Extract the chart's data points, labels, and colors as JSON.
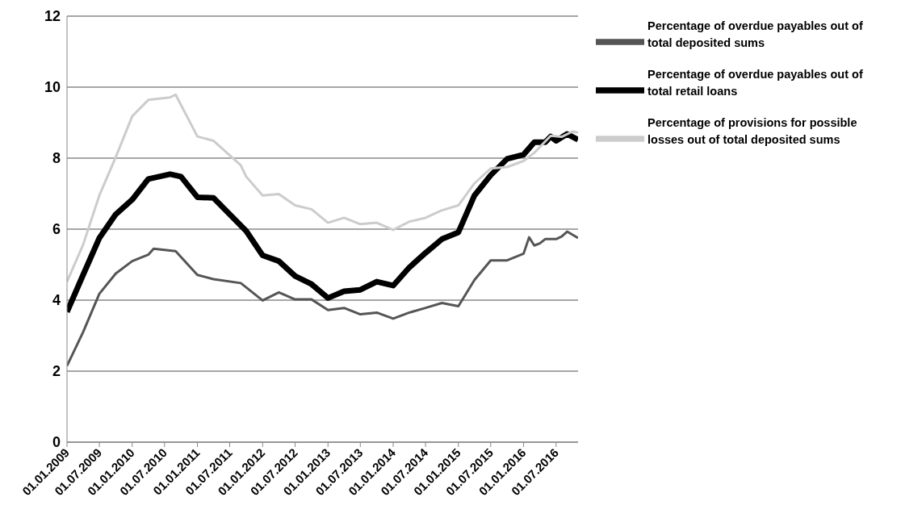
{
  "chart_data": {
    "type": "line",
    "ylim": [
      0,
      12
    ],
    "yticks": [
      0,
      2,
      4,
      6,
      8,
      10,
      12
    ],
    "xlim": [
      "2009-01-01",
      "2016-11-01"
    ],
    "xticks": [
      {
        "value": "2009-01-01",
        "label": "01.01.2009"
      },
      {
        "value": "2009-07-01",
        "label": "01.07.2009"
      },
      {
        "value": "2010-01-01",
        "label": "01.01.2010"
      },
      {
        "value": "2010-07-01",
        "label": "01.07.2010"
      },
      {
        "value": "2011-01-01",
        "label": "01.01.2011"
      },
      {
        "value": "2011-07-01",
        "label": "01.07.2011"
      },
      {
        "value": "2012-01-01",
        "label": "01.01.2012"
      },
      {
        "value": "2012-07-01",
        "label": "01.07.2012"
      },
      {
        "value": "2013-01-01",
        "label": "01.01.2013"
      },
      {
        "value": "2013-07-01",
        "label": "01.07.2013"
      },
      {
        "value": "2014-01-01",
        "label": "01.01.2014"
      },
      {
        "value": "2014-07-01",
        "label": "01.07.2014"
      },
      {
        "value": "2015-01-01",
        "label": "01.01.2015"
      },
      {
        "value": "2015-07-01",
        "label": "01.07.2015"
      },
      {
        "value": "2016-01-01",
        "label": "01.01.2016"
      },
      {
        "value": "2016-07-01",
        "label": "01.07.2016"
      }
    ],
    "grid": "y",
    "legend": "top right",
    "line_style": "solid",
    "marker": "none",
    "series": [
      {
        "name": "Percentage of overdue payables out of total deposited sums",
        "color": "#555555",
        "x": [
          "2009-01-01",
          "2009-04-01",
          "2009-07-01",
          "2009-10-01",
          "2010-01-01",
          "2010-04-01",
          "2010-05-01",
          "2010-09-01",
          "2011-01-01",
          "2011-04-01",
          "2011-09-01",
          "2012-01-01",
          "2012-04-01",
          "2012-07-01",
          "2012-10-01",
          "2013-01-01",
          "2013-04-01",
          "2013-07-01",
          "2013-10-01",
          "2014-01-01",
          "2014-04-01",
          "2014-07-01",
          "2014-10-01",
          "2015-01-01",
          "2015-04-01",
          "2015-07-01",
          "2015-10-01",
          "2016-01-01",
          "2016-02-01",
          "2016-03-01",
          "2016-04-01",
          "2016-05-01",
          "2016-07-01",
          "2016-08-01",
          "2016-09-01",
          "2016-11-01"
        ],
        "values": [
          2.15,
          3.1,
          4.18,
          4.75,
          5.1,
          5.28,
          5.45,
          5.38,
          4.71,
          4.59,
          4.48,
          3.99,
          4.22,
          4.02,
          4.02,
          3.72,
          3.78,
          3.6,
          3.65,
          3.48,
          3.65,
          3.78,
          3.92,
          3.83,
          4.57,
          5.12,
          5.12,
          5.31,
          5.77,
          5.54,
          5.6,
          5.72,
          5.72,
          5.79,
          5.93,
          5.75
        ]
      },
      {
        "name": "Percentage of overdue payables out of total retail loans",
        "color": "#000000",
        "x": [
          "2009-01-01",
          "2009-04-01",
          "2009-07-01",
          "2009-10-01",
          "2010-01-01",
          "2010-04-01",
          "2010-08-01",
          "2010-10-01",
          "2011-01-01",
          "2011-04-01",
          "2011-10-01",
          "2012-01-01",
          "2012-04-01",
          "2012-07-01",
          "2012-10-01",
          "2013-01-01",
          "2013-04-01",
          "2013-07-01",
          "2013-10-01",
          "2014-01-01",
          "2014-04-01",
          "2014-07-01",
          "2014-10-01",
          "2015-01-01",
          "2015-04-01",
          "2015-07-01",
          "2015-10-01",
          "2016-01-01",
          "2016-03-01",
          "2016-05-01",
          "2016-06-01",
          "2016-07-01",
          "2016-09-01",
          "2016-11-01"
        ],
        "values": [
          3.67,
          4.71,
          5.75,
          6.42,
          6.83,
          7.41,
          7.55,
          7.48,
          6.9,
          6.88,
          5.95,
          5.26,
          5.1,
          4.68,
          4.45,
          4.06,
          4.25,
          4.29,
          4.52,
          4.41,
          4.92,
          5.33,
          5.72,
          5.91,
          6.95,
          7.52,
          7.98,
          8.1,
          8.45,
          8.45,
          8.61,
          8.49,
          8.68,
          8.52
        ]
      },
      {
        "name": "Percentage of provisions for possible losses out of total deposited sums",
        "color": "#cccccc",
        "x": [
          "2009-01-01",
          "2009-04-01",
          "2009-07-01",
          "2009-10-01",
          "2010-01-01",
          "2010-04-01",
          "2010-08-01",
          "2010-09-01",
          "2011-01-01",
          "2011-04-01",
          "2011-09-01",
          "2011-10-01",
          "2012-01-01",
          "2012-04-01",
          "2012-07-01",
          "2012-10-01",
          "2013-01-01",
          "2013-04-01",
          "2013-07-01",
          "2013-10-01",
          "2014-01-01",
          "2014-04-01",
          "2014-07-01",
          "2014-10-01",
          "2015-01-01",
          "2015-04-01",
          "2015-07-01",
          "2015-10-01",
          "2016-01-01",
          "2016-03-01",
          "2016-06-01",
          "2016-08-01",
          "2016-10-01",
          "2016-11-01"
        ],
        "values": [
          4.52,
          5.56,
          6.95,
          8.03,
          9.18,
          9.64,
          9.71,
          9.79,
          8.61,
          8.49,
          7.8,
          7.48,
          6.95,
          6.99,
          6.67,
          6.56,
          6.18,
          6.32,
          6.14,
          6.18,
          5.98,
          6.21,
          6.32,
          6.53,
          6.67,
          7.29,
          7.71,
          7.75,
          7.92,
          8.15,
          8.63,
          8.6,
          8.75,
          8.72
        ]
      }
    ]
  }
}
